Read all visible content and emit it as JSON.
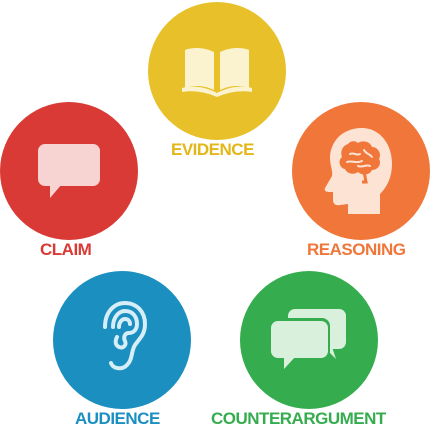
{
  "nodes": {
    "evidence": {
      "label": "EVIDENCE",
      "icon": "open-book-icon",
      "color": "#e8c12a",
      "text_color": "#e2b717"
    },
    "claim": {
      "label": "CLAIM",
      "icon": "speech-bubble-icon",
      "color": "#d93a36",
      "text_color": "#d93a36"
    },
    "reasoning": {
      "label": "REASONING",
      "icon": "brain-head-icon",
      "color": "#f0763a",
      "text_color": "#f0763a"
    },
    "audience": {
      "label": "AUDIENCE",
      "icon": "ear-icon",
      "color": "#1b8fc0",
      "text_color": "#1b8fc0"
    },
    "counterargument": {
      "label": "COUNTERARGUMENT",
      "icon": "conversation-bubbles-icon",
      "color": "#35ad4e",
      "text_color": "#35ad4e"
    }
  }
}
